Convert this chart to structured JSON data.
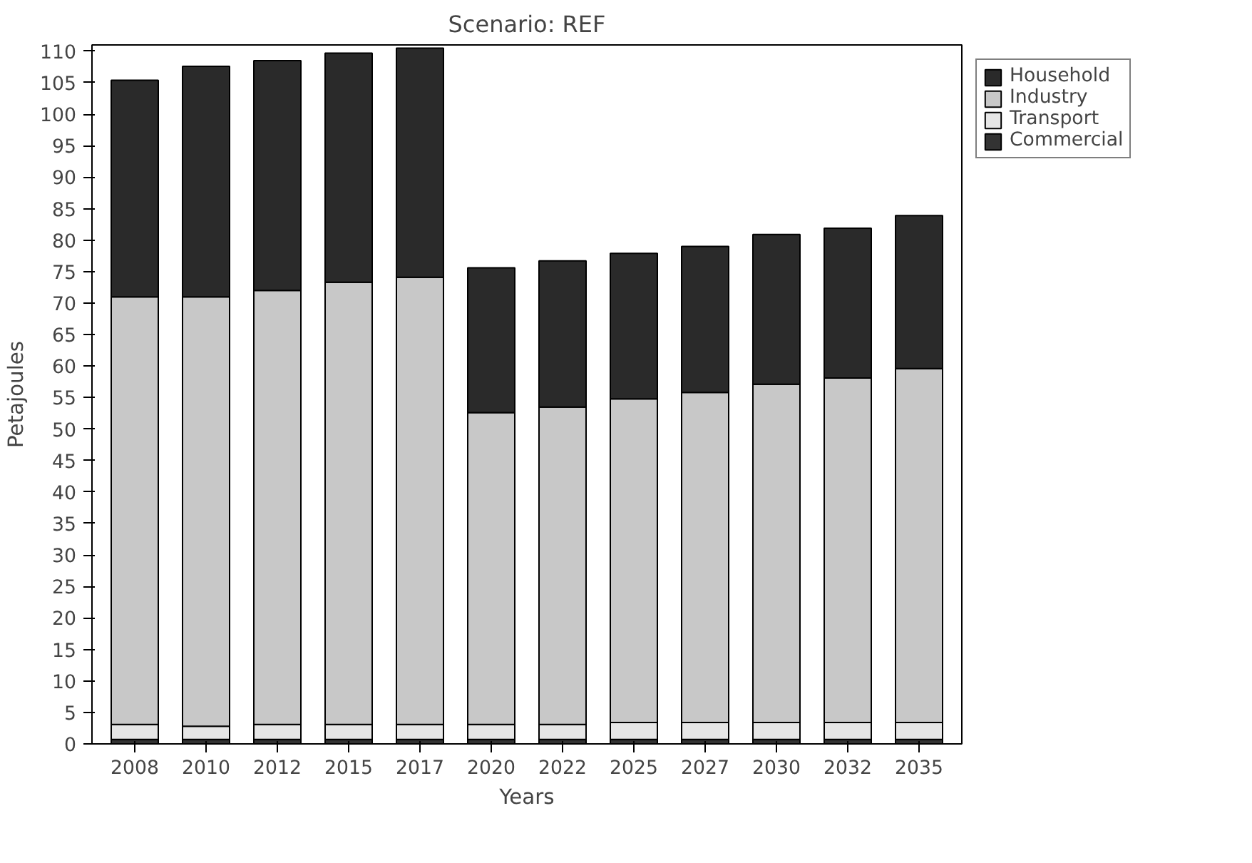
{
  "chart_data": {
    "type": "bar",
    "title": "Scenario: REF",
    "xlabel": "Years",
    "ylabel": "Petajoules",
    "stacked": true,
    "categories": [
      "2008",
      "2010",
      "2012",
      "2015",
      "2017",
      "2020",
      "2022",
      "2025",
      "2027",
      "2030",
      "2032",
      "2035"
    ],
    "series": [
      {
        "name": "Commercial",
        "color": "#333333",
        "values": [
          0.7,
          0.7,
          0.7,
          0.7,
          0.7,
          0.7,
          0.7,
          0.7,
          0.7,
          0.7,
          0.7,
          0.7
        ]
      },
      {
        "name": "Transport",
        "color": "#e6e6e6",
        "values": [
          2.4,
          2.1,
          2.4,
          2.4,
          2.4,
          2.4,
          2.4,
          2.7,
          2.7,
          2.7,
          2.7,
          2.7
        ]
      },
      {
        "name": "Industry",
        "color": "#c8c8c8",
        "values": [
          67.9,
          68.2,
          68.9,
          70.2,
          71.0,
          49.5,
          50.4,
          51.4,
          52.4,
          53.7,
          54.7,
          56.2
        ]
      },
      {
        "name": "Household",
        "color": "#2a2a2a",
        "values": [
          34.4,
          36.6,
          36.5,
          36.4,
          36.4,
          23.0,
          23.2,
          23.1,
          23.2,
          23.8,
          23.8,
          24.3
        ]
      }
    ],
    "ylim": [
      0,
      111
    ],
    "yticks": [
      0,
      5,
      10,
      15,
      20,
      25,
      30,
      35,
      40,
      45,
      50,
      55,
      60,
      65,
      70,
      75,
      80,
      85,
      90,
      95,
      100,
      105,
      110
    ],
    "grid": false,
    "legend": "top right"
  }
}
